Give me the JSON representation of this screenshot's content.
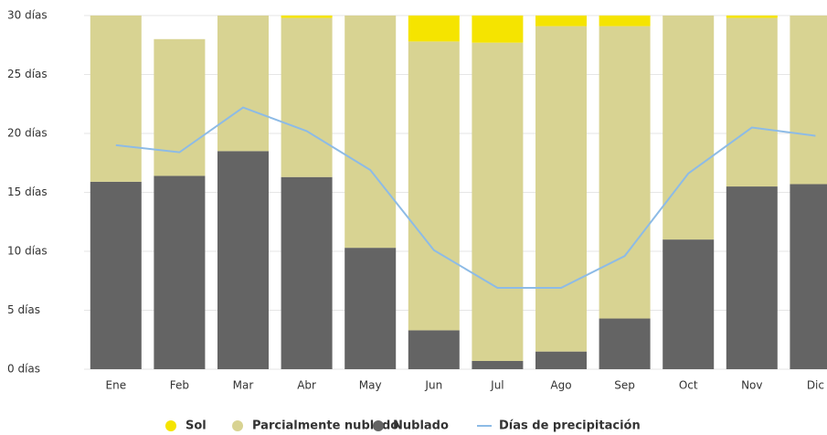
{
  "chart_data": {
    "type": "stacked-bar-line",
    "categories": [
      "Ene",
      "Feb",
      "Mar",
      "Abr",
      "May",
      "Jun",
      "Jul",
      "Ago",
      "Sep",
      "Oct",
      "Nov",
      "Dic"
    ],
    "series": [
      {
        "name": "Sol",
        "color": "#f5e400",
        "kind": "bar",
        "values": [
          0,
          0,
          0,
          0.2,
          0,
          2.2,
          3.3,
          1.9,
          0.9,
          0,
          0.2,
          0
        ]
      },
      {
        "name": "Parcialmente nublado",
        "color": "#d8d392",
        "kind": "bar",
        "values": [
          15.1,
          11.6,
          12.5,
          13.5,
          20.7,
          24.5,
          27.0,
          27.6,
          24.8,
          20.0,
          14.3,
          15.3
        ]
      },
      {
        "name": "Nublado",
        "color": "#646464",
        "kind": "bar",
        "values": [
          15.9,
          16.4,
          18.5,
          16.3,
          10.3,
          3.3,
          0.7,
          1.5,
          4.3,
          11.0,
          15.5,
          15.7
        ]
      },
      {
        "name": "Días de precipitación",
        "color": "#8dbbe6",
        "kind": "line",
        "values": [
          19.0,
          18.4,
          22.2,
          20.2,
          16.9,
          10.1,
          6.9,
          6.9,
          9.6,
          16.6,
          20.5,
          19.8
        ]
      }
    ],
    "ylim": [
      0,
      30
    ],
    "yticks": [
      {
        "value": 0,
        "label": "0 días"
      },
      {
        "value": 5,
        "label": "5 días"
      },
      {
        "value": 10,
        "label": "10 días"
      },
      {
        "value": 15,
        "label": "15 días"
      },
      {
        "value": 20,
        "label": "20 días"
      },
      {
        "value": 25,
        "label": "25 días"
      },
      {
        "value": 30,
        "label": "30 días"
      }
    ],
    "grid": true,
    "legend": "bottom"
  }
}
